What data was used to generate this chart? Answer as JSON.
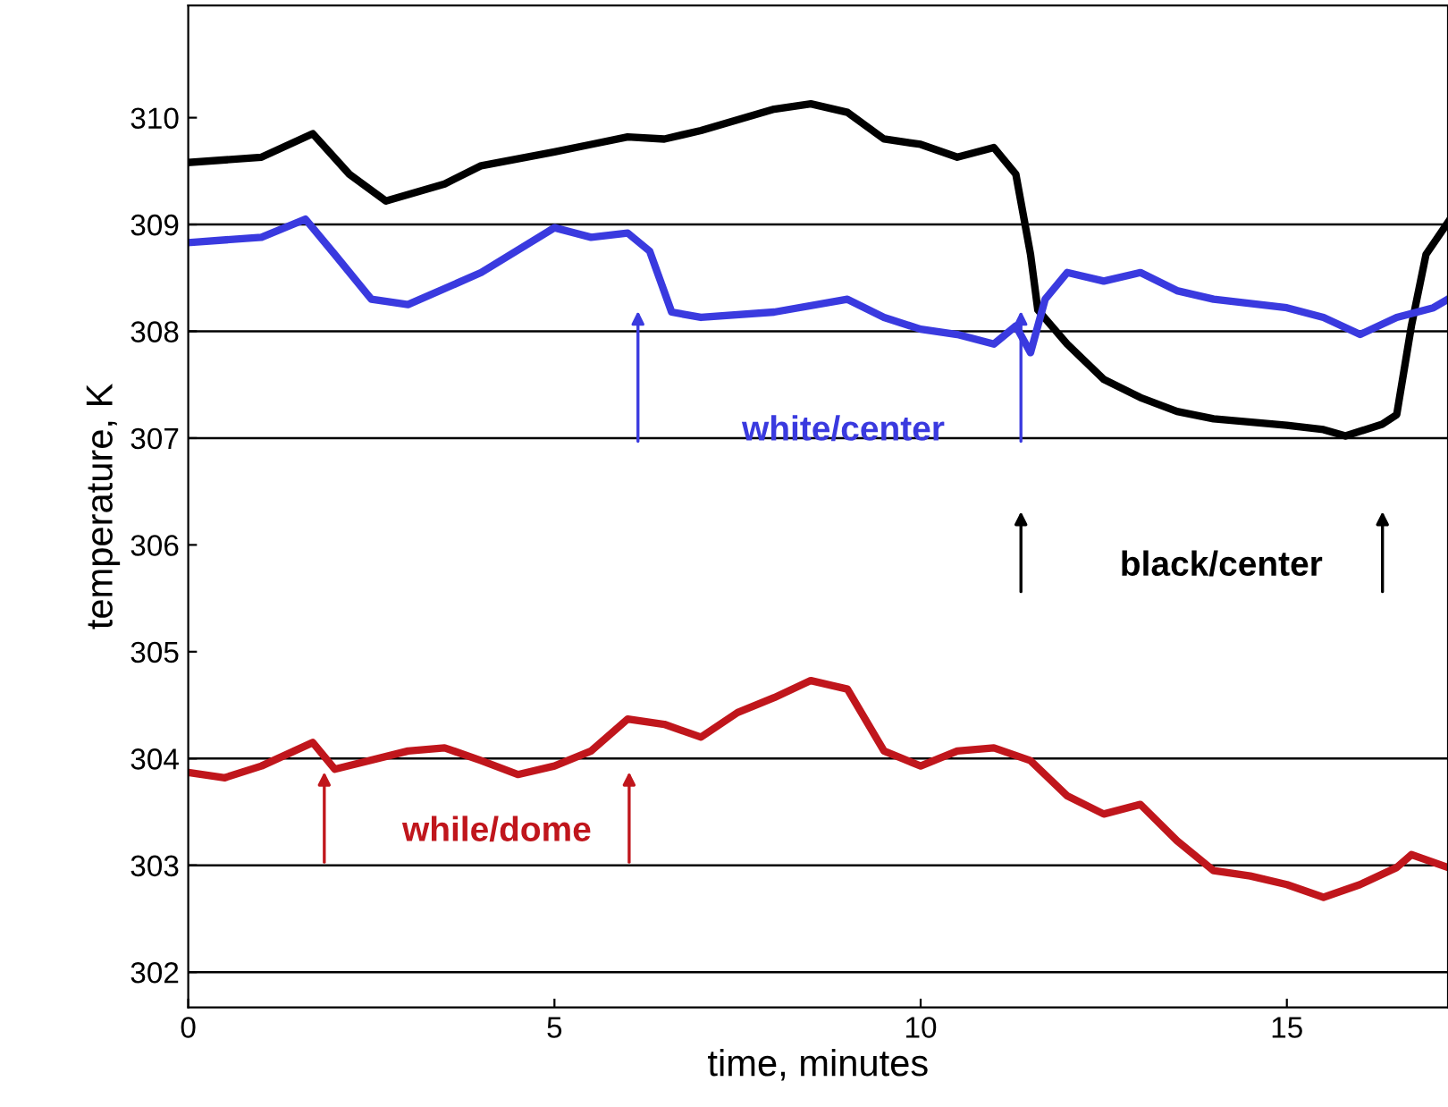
{
  "chart_data": {
    "type": "line",
    "xlabel": "time, minutes",
    "ylabel": "temperature, K",
    "xlim": [
      0,
      17.2
    ],
    "ylim": [
      301.67,
      311.05
    ],
    "xticks": [
      0,
      5,
      10,
      15
    ],
    "yticks": [
      302,
      303,
      304,
      305,
      306,
      307,
      308,
      309,
      310
    ],
    "grid": false,
    "legend": false,
    "ref_lines": [
      {
        "axis": "y",
        "value": 309,
        "color": "#000000"
      },
      {
        "axis": "y",
        "value": 308,
        "color": "#000000"
      },
      {
        "axis": "y",
        "value": 307,
        "color": "#000000"
      },
      {
        "axis": "y",
        "value": 304,
        "color": "#000000"
      },
      {
        "axis": "y",
        "value": 303,
        "color": "#000000"
      },
      {
        "axis": "y",
        "value": 302,
        "color": "#000000"
      }
    ],
    "annotations": [
      "white/center",
      "black/center",
      "while/dome"
    ],
    "series": [
      {
        "color": "#000000",
        "x": [
          0,
          1,
          1.7,
          2.2,
          2.7,
          3.5,
          4,
          5,
          5.5,
          6,
          6.5,
          7,
          7.5,
          8,
          8.5,
          9,
          9.5,
          10,
          10.5,
          11,
          11.3,
          11.5,
          11.6,
          12,
          12.5,
          13,
          13.5,
          14,
          15,
          15.5,
          15.8,
          16.3,
          16.5,
          16.7,
          16.9,
          17.2
        ],
        "values": [
          309.58,
          309.63,
          309.85,
          309.47,
          309.22,
          309.38,
          309.55,
          309.68,
          309.75,
          309.82,
          309.8,
          309.88,
          309.98,
          310.08,
          310.13,
          310.05,
          309.8,
          309.75,
          309.63,
          309.72,
          309.47,
          308.72,
          308.2,
          307.88,
          307.55,
          307.38,
          307.25,
          307.18,
          307.12,
          307.08,
          307.02,
          307.13,
          307.22,
          308.05,
          308.72,
          309.02
        ]
      },
      {
        "color": "#3a3adf",
        "x": [
          0,
          1,
          1.6,
          2,
          2.5,
          3,
          4,
          5,
          5.5,
          6,
          6.3,
          6.6,
          7,
          8,
          9,
          9.5,
          10,
          10.5,
          11,
          11.3,
          11.5,
          11.7,
          12,
          12.5,
          13,
          13.5,
          14,
          15,
          15.5,
          16,
          16.5,
          17,
          17.2
        ],
        "values": [
          308.83,
          308.88,
          309.05,
          308.72,
          308.3,
          308.25,
          308.55,
          308.97,
          308.88,
          308.92,
          308.75,
          308.18,
          308.13,
          308.18,
          308.3,
          308.13,
          308.02,
          307.97,
          307.88,
          308.05,
          307.8,
          308.3,
          308.55,
          308.47,
          308.55,
          308.38,
          308.3,
          308.22,
          308.13,
          307.97,
          308.13,
          308.22,
          308.3
        ]
      },
      {
        "color": "#c0161c",
        "x": [
          0,
          0.5,
          1,
          1.7,
          2,
          3,
          3.5,
          4,
          4.5,
          5,
          5.5,
          6,
          6.5,
          7,
          7.5,
          8,
          8.5,
          9,
          9.5,
          10,
          10.5,
          11,
          11.5,
          12,
          12.5,
          13,
          13.5,
          14,
          14.5,
          15,
          15.5,
          16,
          16.5,
          16.7,
          17.2
        ],
        "values": [
          303.87,
          303.82,
          303.93,
          304.15,
          303.9,
          304.07,
          304.1,
          303.98,
          303.85,
          303.93,
          304.07,
          304.37,
          304.32,
          304.2,
          304.43,
          304.57,
          304.73,
          304.65,
          304.07,
          303.93,
          304.07,
          304.1,
          303.98,
          303.65,
          303.48,
          303.57,
          303.23,
          302.95,
          302.9,
          302.82,
          302.7,
          302.82,
          302.98,
          303.1,
          302.98
        ]
      }
    ]
  }
}
